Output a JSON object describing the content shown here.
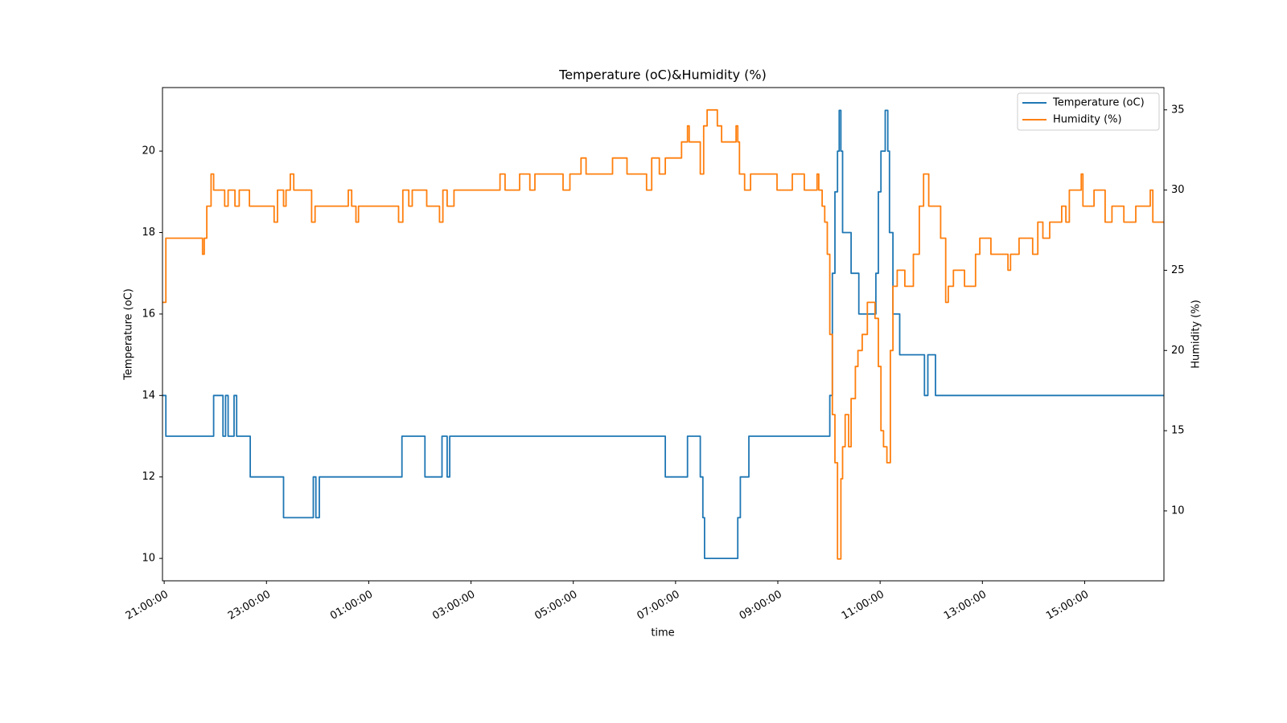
{
  "chart_data": {
    "type": "line",
    "drawstyle": "steps-post",
    "title": "Temperature (oC)&Humidity (%)",
    "x_label": "time",
    "y_label": "Temperature (oC)",
    "y2_label": "Humidity (%)",
    "legend": "upper right",
    "xlim": [
      "20:58",
      "16:33"
    ],
    "xticks": [
      "21:00:00",
      "23:00:00",
      "01:00:00",
      "03:00:00",
      "05:00:00",
      "07:00:00",
      "09:00:00",
      "11:00:00",
      "13:00:00",
      "15:00:00"
    ],
    "ylim": [
      9.45,
      21.56
    ],
    "yticks": [
      10,
      12,
      14,
      16,
      18,
      20
    ],
    "y2lim": [
      5.64,
      36.39
    ],
    "y2ticks": [
      10,
      15,
      20,
      25,
      30,
      35
    ],
    "series": [
      {
        "name": "Temperature (oC)",
        "color": "#1f77b4",
        "axis": "y",
        "x": [
          "20:58",
          "21:02",
          "21:58",
          "22:09",
          "22:12",
          "22:15",
          "22:22",
          "22:25",
          "22:41",
          "23:20",
          "23:55",
          "23:58",
          "00:02",
          "01:39",
          "02:06",
          "02:26",
          "02:32",
          "02:35",
          "06:48",
          "07:14",
          "07:29",
          "07:32",
          "07:34",
          "08:13",
          "08:16",
          "08:26",
          "10:01",
          "10:04",
          "10:07",
          "10:10",
          "10:12",
          "10:14",
          "10:16",
          "10:26",
          "10:35",
          "10:55",
          "10:58",
          "11:01",
          "11:06",
          "11:09",
          "11:11",
          "11:15",
          "11:23",
          "11:52",
          "11:56",
          "12:05",
          "16:33"
        ],
        "values": [
          14,
          13,
          14,
          13,
          14,
          13,
          14,
          13,
          12,
          11,
          12,
          11,
          12,
          13,
          12,
          13,
          12,
          13,
          12,
          13,
          12,
          11,
          10,
          11,
          12,
          13,
          14,
          17,
          19,
          20,
          21,
          20,
          18,
          17,
          16,
          17,
          19,
          20,
          21,
          20,
          18,
          16,
          15,
          14,
          15,
          14,
          14
        ]
      },
      {
        "name": "Humidity (%)",
        "color": "#ff7f0e",
        "axis": "y2",
        "x": [
          "20:58",
          "21:02",
          "21:45",
          "21:47",
          "21:50",
          "21:55",
          "21:58",
          "22:11",
          "22:15",
          "22:23",
          "22:28",
          "22:40",
          "23:09",
          "23:13",
          "23:20",
          "23:23",
          "23:28",
          "23:32",
          "23:53",
          "23:57",
          "00:36",
          "00:40",
          "00:45",
          "00:48",
          "01:35",
          "01:40",
          "01:47",
          "01:51",
          "02:08",
          "02:23",
          "02:27",
          "02:32",
          "02:40",
          "03:34",
          "03:40",
          "03:57",
          "04:09",
          "04:15",
          "04:48",
          "04:56",
          "05:09",
          "05:15",
          "05:46",
          "06:03",
          "06:26",
          "06:32",
          "06:41",
          "06:48",
          "07:07",
          "07:14",
          "07:16",
          "07:29",
          "07:33",
          "07:37",
          "07:49",
          "07:54",
          "08:11",
          "08:13",
          "08:15",
          "08:21",
          "08:28",
          "08:59",
          "09:17",
          "09:31",
          "09:46",
          "09:48",
          "09:52",
          "09:55",
          "09:58",
          "10:01",
          "10:04",
          "10:07",
          "10:10",
          "10:14",
          "10:16",
          "10:19",
          "10:23",
          "10:26",
          "10:31",
          "10:34",
          "10:39",
          "10:45",
          "10:54",
          "10:58",
          "11:01",
          "11:04",
          "11:08",
          "11:12",
          "11:15",
          "11:20",
          "11:29",
          "11:39",
          "11:46",
          "11:51",
          "11:57",
          "12:11",
          "12:17",
          "12:20",
          "12:26",
          "12:39",
          "12:52",
          "12:57",
          "13:10",
          "13:30",
          "13:33",
          "13:43",
          "13:59",
          "14:05",
          "14:11",
          "14:19",
          "14:33",
          "14:38",
          "14:42",
          "14:56",
          "14:58",
          "15:11",
          "15:24",
          "15:32",
          "15:46",
          "16:00",
          "16:17",
          "16:20",
          "16:33"
        ],
        "values": [
          23,
          27,
          26,
          27,
          29,
          31,
          30,
          29,
          30,
          29,
          30,
          29,
          28,
          30,
          29,
          30,
          31,
          30,
          28,
          29,
          30,
          29,
          28,
          29,
          28,
          30,
          29,
          30,
          29,
          28,
          30,
          29,
          30,
          31,
          30,
          31,
          30,
          31,
          30,
          31,
          32,
          31,
          32,
          31,
          30,
          32,
          31,
          32,
          33,
          34,
          33,
          31,
          34,
          35,
          34,
          33,
          34,
          33,
          31,
          30,
          31,
          30,
          31,
          30,
          31,
          30,
          29,
          28,
          26,
          21,
          16,
          13,
          7,
          12,
          14,
          16,
          14,
          17,
          19,
          20,
          21,
          23,
          22,
          19,
          15,
          14,
          13,
          20,
          24,
          25,
          24,
          26,
          29,
          31,
          29,
          27,
          23,
          24,
          25,
          24,
          26,
          27,
          26,
          25,
          26,
          27,
          26,
          28,
          27,
          28,
          29,
          28,
          30,
          31,
          29,
          30,
          28,
          29,
          28,
          29,
          30,
          28,
          28
        ]
      }
    ]
  }
}
